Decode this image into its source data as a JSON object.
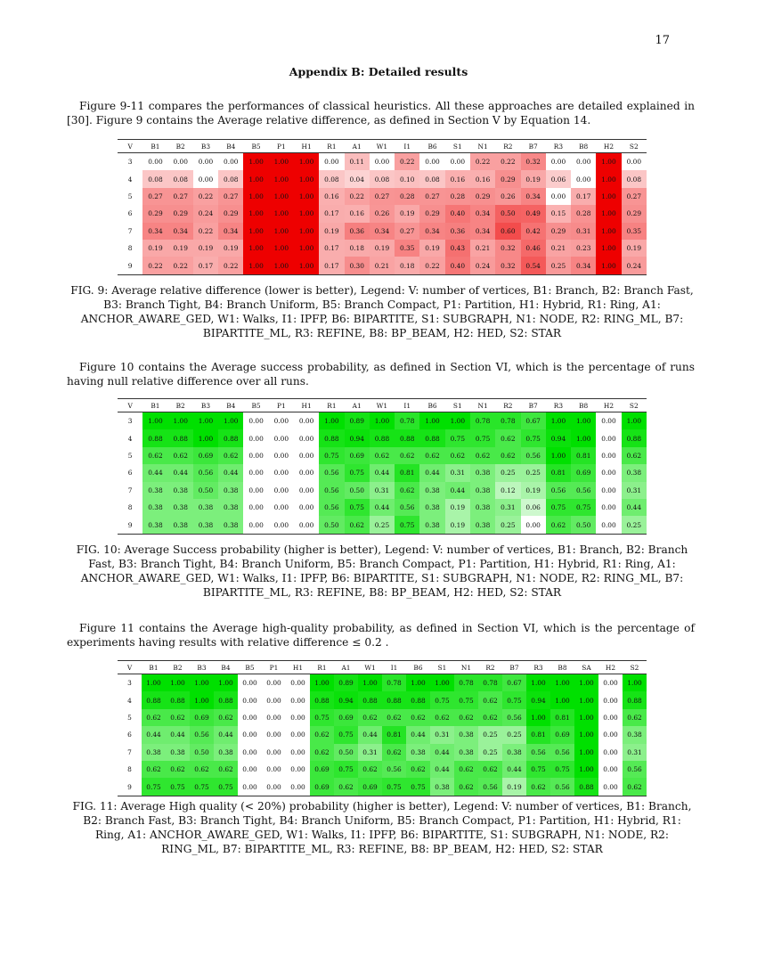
{
  "page_number": "17",
  "heading": "Appendix B: Detailed results",
  "intro_paragraph": "Figure 9-11 compares the performances of classical heuristics. All these approaches are detailed explained in [30]. Figure 9 contains the Average relative difference, as defined in Section V by Equation 14.",
  "fig10_paragraph": "Figure 10 contains the Average success probability, as defined in Section VI, which is the percentage of runs having null relative difference over all runs.",
  "fig11_paragraph": "Figure 11 contains the Average high-quality probability, as defined in Section VI, which is the percentage of experiments having results with relative difference ≤ 0.2 .",
  "colors": {
    "low_red": "#fde4e4",
    "high_red": "#ee0000",
    "low_green": "#e6fbe6",
    "high_green": "#00e000"
  },
  "chart_data": [
    {
      "type": "heatmap",
      "id": "fig9",
      "color_scheme": "red",
      "caption": "FIG. 9: Average relative difference (lower is better), Legend: V: number of vertices, B1: Branch, B2: Branch Fast, B3: Branch Tight, B4: Branch Uniform, B5: Branch Compact, P1: Partition, H1: Hybrid, R1: Ring, A1: ANCHOR_AWARE_GED, W1: Walks, I1: IPFP, B6: BIPARTITE, S1: SUBGRAPH, N1: NODE, R2: RING_ML, B7: BIPARTITE_ML, R3: REFINE, B8: BP_BEAM, H2: HED, S2: STAR",
      "columns": [
        "V",
        "B1",
        "B2",
        "B3",
        "B4",
        "B5",
        "P1",
        "H1",
        "R1",
        "A1",
        "W1",
        "I1",
        "B6",
        "S1",
        "N1",
        "R2",
        "B7",
        "R3",
        "B8",
        "H2",
        "S2"
      ],
      "rows": [
        [
          "3",
          "0.00",
          "0.00",
          "0.00",
          "0.00",
          "1.00",
          "1.00",
          "1.00",
          "0.00",
          "0.11",
          "0.00",
          "0.22",
          "0.00",
          "0.00",
          "0.22",
          "0.22",
          "0.32",
          "0.00",
          "0.00",
          "1.00",
          "0.00"
        ],
        [
          "4",
          "0.08",
          "0.08",
          "0.00",
          "0.08",
          "1.00",
          "1.00",
          "1.00",
          "0.08",
          "0.04",
          "0.08",
          "0.10",
          "0.08",
          "0.16",
          "0.16",
          "0.29",
          "0.19",
          "0.06",
          "0.00",
          "1.00",
          "0.08"
        ],
        [
          "5",
          "0.27",
          "0.27",
          "0.22",
          "0.27",
          "1.00",
          "1.00",
          "1.00",
          "0.16",
          "0.22",
          "0.27",
          "0.28",
          "0.27",
          "0.28",
          "0.29",
          "0.26",
          "0.34",
          "0.00",
          "0.17",
          "1.00",
          "0.27"
        ],
        [
          "6",
          "0.29",
          "0.29",
          "0.24",
          "0.29",
          "1.00",
          "1.00",
          "1.00",
          "0.17",
          "0.16",
          "0.26",
          "0.19",
          "0.29",
          "0.40",
          "0.34",
          "0.50",
          "0.49",
          "0.15",
          "0.28",
          "1.00",
          "0.29"
        ],
        [
          "7",
          "0.34",
          "0.34",
          "0.22",
          "0.34",
          "1.00",
          "1.00",
          "1.00",
          "0.19",
          "0.36",
          "0.34",
          "0.27",
          "0.34",
          "0.36",
          "0.34",
          "0.60",
          "0.42",
          "0.29",
          "0.31",
          "1.00",
          "0.35"
        ],
        [
          "8",
          "0.19",
          "0.19",
          "0.19",
          "0.19",
          "1.00",
          "1.00",
          "1.00",
          "0.17",
          "0.18",
          "0.19",
          "0.35",
          "0.19",
          "0.43",
          "0.21",
          "0.32",
          "0.46",
          "0.21",
          "0.23",
          "1.00",
          "0.19"
        ],
        [
          "9",
          "0.22",
          "0.22",
          "0.17",
          "0.22",
          "1.00",
          "1.00",
          "1.00",
          "0.17",
          "0.30",
          "0.21",
          "0.18",
          "0.22",
          "0.40",
          "0.24",
          "0.32",
          "0.54",
          "0.25",
          "0.34",
          "1.00",
          "0.24"
        ]
      ]
    },
    {
      "type": "heatmap",
      "id": "fig10",
      "color_scheme": "green",
      "caption": "FIG. 10: Average Success probability (higher is better), Legend: V: number of vertices, B1: Branch, B2: Branch Fast, B3: Branch Tight, B4: Branch Uniform, B5: Branch Compact, P1: Partition, H1: Hybrid, R1: Ring, A1: ANCHOR_AWARE_GED, W1: Walks, I1: IPFP, B6: BIPARTITE, S1: SUBGRAPH, N1: NODE, R2: RING_ML, B7: BIPARTITE_ML, R3: REFINE, B8: BP_BEAM, H2: HED, S2: STAR",
      "columns": [
        "V",
        "B1",
        "B2",
        "B3",
        "B4",
        "B5",
        "P1",
        "H1",
        "R1",
        "A1",
        "W1",
        "I1",
        "B6",
        "S1",
        "N1",
        "R2",
        "B7",
        "R3",
        "B8",
        "H2",
        "S2"
      ],
      "rows": [
        [
          "3",
          "1.00",
          "1.00",
          "1.00",
          "1.00",
          "0.00",
          "0.00",
          "0.00",
          "1.00",
          "0.89",
          "1.00",
          "0.78",
          "1.00",
          "1.00",
          "0.78",
          "0.78",
          "0.67",
          "1.00",
          "1.00",
          "0.00",
          "1.00"
        ],
        [
          "4",
          "0.88",
          "0.88",
          "1.00",
          "0.88",
          "0.00",
          "0.00",
          "0.00",
          "0.88",
          "0.94",
          "0.88",
          "0.88",
          "0.88",
          "0.75",
          "0.75",
          "0.62",
          "0.75",
          "0.94",
          "1.00",
          "0.00",
          "0.88"
        ],
        [
          "5",
          "0.62",
          "0.62",
          "0.69",
          "0.62",
          "0.00",
          "0.00",
          "0.00",
          "0.75",
          "0.69",
          "0.62",
          "0.62",
          "0.62",
          "0.62",
          "0.62",
          "0.62",
          "0.56",
          "1.00",
          "0.81",
          "0.00",
          "0.62"
        ],
        [
          "6",
          "0.44",
          "0.44",
          "0.56",
          "0.44",
          "0.00",
          "0.00",
          "0.00",
          "0.56",
          "0.75",
          "0.44",
          "0.81",
          "0.44",
          "0.31",
          "0.38",
          "0.25",
          "0.25",
          "0.81",
          "0.69",
          "0.00",
          "0.38"
        ],
        [
          "7",
          "0.38",
          "0.38",
          "0.50",
          "0.38",
          "0.00",
          "0.00",
          "0.00",
          "0.56",
          "0.50",
          "0.31",
          "0.62",
          "0.38",
          "0.44",
          "0.38",
          "0.12",
          "0.19",
          "0.56",
          "0.56",
          "0.00",
          "0.31"
        ],
        [
          "8",
          "0.38",
          "0.38",
          "0.38",
          "0.38",
          "0.00",
          "0.00",
          "0.00",
          "0.56",
          "0.75",
          "0.44",
          "0.56",
          "0.38",
          "0.19",
          "0.38",
          "0.31",
          "0.06",
          "0.75",
          "0.75",
          "0.00",
          "0.44"
        ],
        [
          "9",
          "0.38",
          "0.38",
          "0.38",
          "0.38",
          "0.00",
          "0.00",
          "0.00",
          "0.50",
          "0.62",
          "0.25",
          "0.75",
          "0.38",
          "0.19",
          "0.38",
          "0.25",
          "0.00",
          "0.62",
          "0.50",
          "0.00",
          "0.25"
        ]
      ]
    },
    {
      "type": "heatmap",
      "id": "fig11",
      "color_scheme": "green",
      "caption": "FIG. 11: Average High quality (< 20%) probability (higher is better), Legend: V: number of vertices, B1: Branch, B2: Branch Fast, B3: Branch Tight, B4: Branch Uniform, B5: Branch Compact, P1: Partition, H1: Hybrid, R1: Ring, A1: ANCHOR_AWARE_GED, W1: Walks, I1: IPFP, B6: BIPARTITE, S1: SUBGRAPH, N1: NODE, R2: RING_ML, B7: BIPARTITE_ML, R3: REFINE, B8: BP_BEAM, H2: HED, S2: STAR",
      "columns": [
        "V",
        "B1",
        "B2",
        "B3",
        "B4",
        "B5",
        "P1",
        "H1",
        "R1",
        "A1",
        "W1",
        "I1",
        "B6",
        "S1",
        "N1",
        "R2",
        "B7",
        "R3",
        "B8",
        "SA",
        "H2",
        "S2"
      ],
      "rows": [
        [
          "3",
          "1.00",
          "1.00",
          "1.00",
          "1.00",
          "0.00",
          "0.00",
          "0.00",
          "1.00",
          "0.89",
          "1.00",
          "0.78",
          "1.00",
          "1.00",
          "0.78",
          "0.78",
          "0.67",
          "1.00",
          "1.00",
          "1.00",
          "0.00",
          "1.00"
        ],
        [
          "4",
          "0.88",
          "0.88",
          "1.00",
          "0.88",
          "0.00",
          "0.00",
          "0.00",
          "0.88",
          "0.94",
          "0.88",
          "0.88",
          "0.88",
          "0.75",
          "0.75",
          "0.62",
          "0.75",
          "0.94",
          "1.00",
          "1.00",
          "0.00",
          "0.88"
        ],
        [
          "5",
          "0.62",
          "0.62",
          "0.69",
          "0.62",
          "0.00",
          "0.00",
          "0.00",
          "0.75",
          "0.69",
          "0.62",
          "0.62",
          "0.62",
          "0.62",
          "0.62",
          "0.62",
          "0.56",
          "1.00",
          "0.81",
          "1.00",
          "0.00",
          "0.62"
        ],
        [
          "6",
          "0.44",
          "0.44",
          "0.56",
          "0.44",
          "0.00",
          "0.00",
          "0.00",
          "0.62",
          "0.75",
          "0.44",
          "0.81",
          "0.44",
          "0.31",
          "0.38",
          "0.25",
          "0.25",
          "0.81",
          "0.69",
          "1.00",
          "0.00",
          "0.38"
        ],
        [
          "7",
          "0.38",
          "0.38",
          "0.50",
          "0.38",
          "0.00",
          "0.00",
          "0.00",
          "0.62",
          "0.50",
          "0.31",
          "0.62",
          "0.38",
          "0.44",
          "0.38",
          "0.25",
          "0.38",
          "0.56",
          "0.56",
          "1.00",
          "0.00",
          "0.31"
        ],
        [
          "8",
          "0.62",
          "0.62",
          "0.62",
          "0.62",
          "0.00",
          "0.00",
          "0.00",
          "0.69",
          "0.75",
          "0.62",
          "0.56",
          "0.62",
          "0.44",
          "0.62",
          "0.62",
          "0.44",
          "0.75",
          "0.75",
          "1.00",
          "0.00",
          "0.56"
        ],
        [
          "9",
          "0.75",
          "0.75",
          "0.75",
          "0.75",
          "0.00",
          "0.00",
          "0.00",
          "0.69",
          "0.62",
          "0.69",
          "0.75",
          "0.75",
          "0.38",
          "0.62",
          "0.56",
          "0.19",
          "0.62",
          "0.56",
          "0.88",
          "0.00",
          "0.62"
        ]
      ]
    }
  ]
}
